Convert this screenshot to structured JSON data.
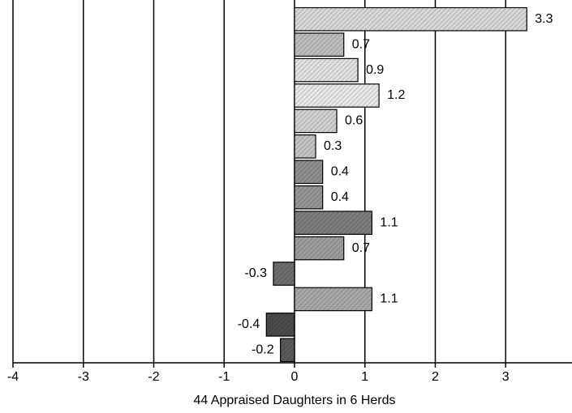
{
  "chart_data": {
    "type": "hbar",
    "xlabel": "44 Appraised Daughters in 6 Herds",
    "values": [
      3.3,
      0.7,
      0.9,
      1.2,
      0.6,
      0.3,
      0.4,
      0.4,
      1.1,
      0.7,
      -0.3,
      1.1,
      -0.4,
      -0.2
    ],
    "colors": [
      "#d8d8d8",
      "#bdbdbd",
      "#e2e2e2",
      "#e8e8e8",
      "#d0d0d0",
      "#c4c4c4",
      "#8f8f8f",
      "#959595",
      "#7e7e7e",
      "#9c9c9c",
      "#6e6e6e",
      "#a8a8a8",
      "#4a4a4a",
      "#5a5a5a"
    ],
    "xlim": [
      -4,
      4
    ],
    "xticks": [
      -4,
      -3,
      -2,
      -1,
      0,
      1,
      2,
      3
    ],
    "grid": true
  }
}
